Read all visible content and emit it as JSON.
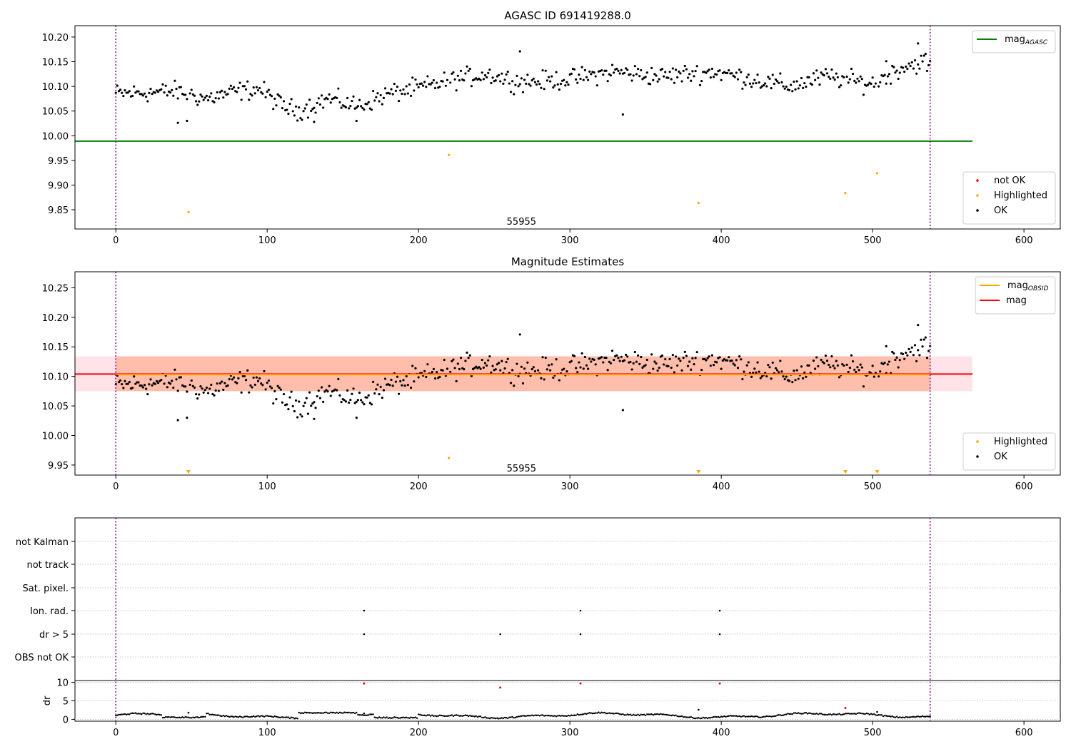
{
  "colors": {
    "ok": "#000000",
    "highlighted": "#ffa500",
    "not_ok": "#ff0000",
    "mag_agasc": "#008000",
    "mag": "#ff0000",
    "mag_obsid": "#ffa500",
    "band_mag": "#ffc0cb",
    "band_obsid": "#ffa07a",
    "vline": "#800080",
    "grid": "#b0b0b0"
  },
  "chart_data": [
    {
      "type": "scatter",
      "title": "AGASC ID 691419288.0",
      "xlim": [
        -27,
        624
      ],
      "ylim": [
        9.811,
        10.223
      ],
      "xticks": [
        0,
        100,
        200,
        300,
        400,
        500,
        600
      ],
      "yticks": [
        9.85,
        9.9,
        9.95,
        10.0,
        10.05,
        10.1,
        10.15,
        10.2
      ],
      "vlines": [
        0,
        538
      ],
      "obsid_label": {
        "text": "55955",
        "x": 268,
        "y": 9.827
      },
      "lines": [
        {
          "name": "mag_AGASC",
          "y": 9.989,
          "x": [
            -27,
            566
          ]
        }
      ],
      "legends": [
        {
          "loc": "upper right",
          "entries": [
            {
              "base": "mag",
              "sub": "AGASC",
              "kind": "line",
              "color": "#008000"
            }
          ]
        },
        {
          "loc": "lower right",
          "entries": [
            {
              "label": "not OK",
              "kind": "dot",
              "color": "#ff0000"
            },
            {
              "label": "Highlighted",
              "kind": "dot",
              "color": "#ffa500"
            },
            {
              "label": "OK",
              "kind": "dot",
              "color": "#000000"
            }
          ]
        }
      ],
      "series": [
        {
          "name": "OK",
          "points": "ok"
        },
        {
          "name": "Highlighted",
          "x": [
            48,
            220,
            385,
            482,
            503
          ],
          "y": [
            9.845,
            9.961,
            9.864,
            9.884,
            9.924
          ]
        }
      ]
    },
    {
      "type": "scatter",
      "title": "Magnitude Estimates",
      "xlim": [
        -27,
        624
      ],
      "ylim": [
        9.933,
        10.277
      ],
      "xticks": [
        0,
        100,
        200,
        300,
        400,
        500,
        600
      ],
      "yticks": [
        9.95,
        10.0,
        10.05,
        10.1,
        10.15,
        10.2,
        10.25
      ],
      "vlines": [
        0,
        538
      ],
      "obsid_label": {
        "text": "55955",
        "x": 268,
        "y": 9.945
      },
      "bands": [
        {
          "name": "mag",
          "y0": 10.075,
          "y1": 10.134,
          "x": [
            -27,
            566
          ]
        },
        {
          "name": "mag_OBSID",
          "y0": 10.075,
          "y1": 10.134,
          "x": [
            0,
            538
          ]
        }
      ],
      "lines": [
        {
          "name": "mag",
          "y": 10.104,
          "x": [
            -27,
            566
          ]
        },
        {
          "name": "mag_OBSID",
          "y": 10.103,
          "x": [
            0,
            538
          ]
        }
      ],
      "legends": [
        {
          "loc": "upper right",
          "entries": [
            {
              "base": "mag",
              "sub": "OBSID",
              "kind": "line",
              "color": "#ffa500"
            },
            {
              "label": "mag",
              "kind": "line",
              "color": "#ff0000"
            }
          ]
        },
        {
          "loc": "lower right",
          "entries": [
            {
              "label": "Highlighted",
              "kind": "dot",
              "color": "#ffa500"
            },
            {
              "label": "OK",
              "kind": "dot",
              "color": "#000000"
            }
          ]
        }
      ],
      "series": [
        {
          "name": "OK",
          "points": "ok"
        },
        {
          "name": "Highlighted",
          "x": [
            220
          ],
          "y": [
            9.962
          ]
        },
        {
          "name": "Highlighted (below range)",
          "x": [
            48,
            385,
            482,
            503
          ]
        }
      ]
    },
    {
      "type": "scatter",
      "xlim": [
        -27,
        624
      ],
      "xticks": [
        0,
        100,
        200,
        300,
        400,
        500,
        600
      ],
      "vlines": [
        0,
        538
      ],
      "flags": [
        "not Kalman",
        "not track",
        "Sat. pixel.",
        "Ion. rad.",
        "dr > 5",
        "OBS not OK"
      ],
      "flag_points": {
        "Ion. rad.": [
          164,
          307,
          399
        ],
        "dr > 5": [
          164,
          254,
          307,
          399
        ]
      },
      "dr": {
        "ylabel": "dr",
        "ylim": [
          -0.5,
          10.5
        ],
        "yticks": [
          0,
          5,
          10
        ],
        "outliers": [
          {
            "x": 164,
            "y": 9.7
          },
          {
            "x": 254,
            "y": 8.6
          },
          {
            "x": 307,
            "y": 9.7
          },
          {
            "x": 399,
            "y": 9.7
          },
          {
            "x": 482,
            "y": 3.1
          }
        ]
      }
    }
  ]
}
